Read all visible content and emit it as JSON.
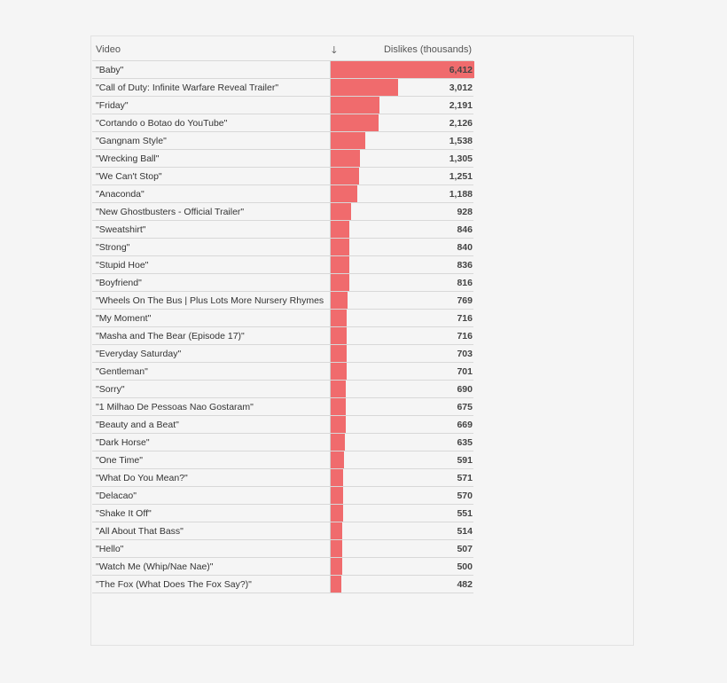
{
  "header": {
    "video_label": "Video",
    "sort_icon": "arrow-down-icon",
    "dislikes_label": "Dislikes (thousands)"
  },
  "colors": {
    "bar": "#f06b6d"
  },
  "chart_data": {
    "type": "bar",
    "xlabel": "",
    "ylabel": "Dislikes (thousands)",
    "ylim": [
      0,
      6412
    ],
    "categories": [
      "\"Baby\"",
      "\"Call of Duty: Infinite Warfare Reveal Trailer\"",
      "\"Friday\"",
      "\"Cortando o Botao do YouTube\"",
      "\"Gangnam Style\"",
      "\"Wrecking Ball\"",
      "\"We Can't Stop\"",
      "\"Anaconda\"",
      "\"New Ghostbusters - Official Trailer\"",
      "\"Sweatshirt\"",
      "\"Strong\"",
      "\"Stupid Hoe\"",
      "\"Boyfriend\"",
      "\"Wheels On The Bus | Plus Lots More Nursery Rhymes",
      "\"My Moment\"",
      "\"Masha and The Bear (Episode 17)\"",
      "\"Everyday Saturday\"",
      "\"Gentleman\"",
      "\"Sorry\"",
      "\"1 Milhao De Pessoas Nao Gostaram\"",
      "\"Beauty and a Beat\"",
      "\"Dark Horse\"",
      "\"One Time\"",
      "\"What Do You Mean?\"",
      "\"Delacao\"",
      "\"Shake It Off\"",
      "\"All About That Bass\"",
      "\"Hello\"",
      "\"Watch Me (Whip/Nae Nae)\"",
      "\"The Fox (What Does The Fox Say?)\""
    ],
    "values": [
      6412,
      3012,
      2191,
      2126,
      1538,
      1305,
      1251,
      1188,
      928,
      846,
      840,
      836,
      816,
      769,
      716,
      716,
      703,
      701,
      690,
      675,
      669,
      635,
      591,
      571,
      570,
      551,
      514,
      507,
      500,
      482
    ],
    "value_labels": [
      "6,412",
      "3,012",
      "2,191",
      "2,126",
      "1,538",
      "1,305",
      "1,251",
      "1,188",
      "928",
      "846",
      "840",
      "836",
      "816",
      "769",
      "716",
      "716",
      "703",
      "701",
      "690",
      "675",
      "669",
      "635",
      "591",
      "571",
      "570",
      "551",
      "514",
      "507",
      "500",
      "482"
    ]
  }
}
